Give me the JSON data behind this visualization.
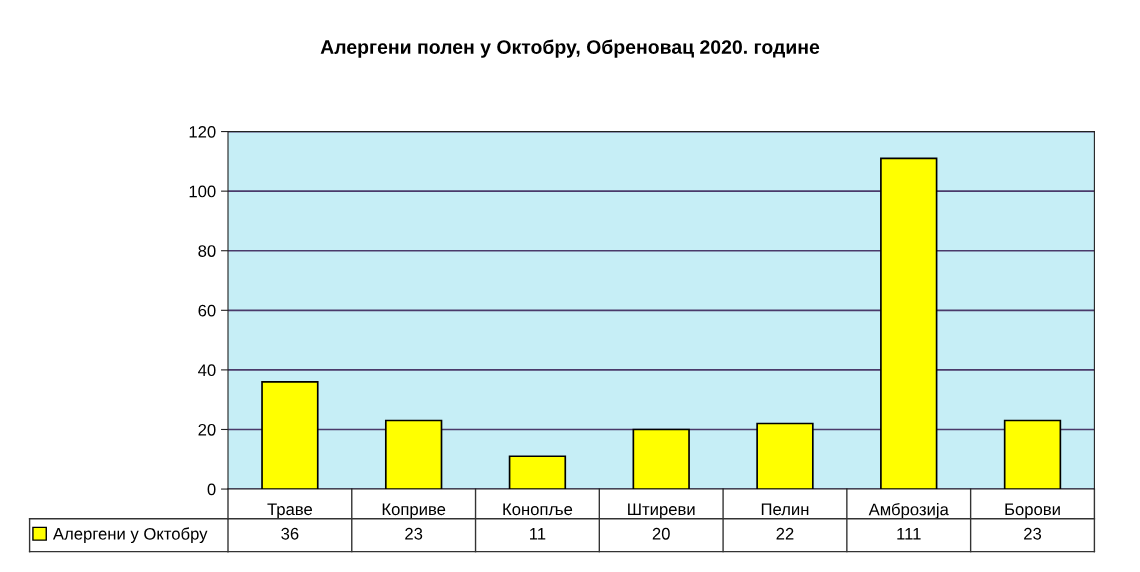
{
  "chart_data": {
    "type": "bar",
    "title": "Алергени полен у Октобру, Обреновац 2020. године",
    "categories": [
      "Траве",
      "Коприве",
      "Конопље",
      "Штиреви",
      "Пелин",
      "Амброзија",
      "Борови"
    ],
    "series": [
      {
        "name": "Алергени у Октобру",
        "color": "#ffff00",
        "values": [
          36,
          23,
          11,
          20,
          22,
          111,
          23
        ]
      }
    ],
    "ylim": [
      0,
      120
    ],
    "yticks": [
      0,
      20,
      40,
      60,
      80,
      100,
      120
    ],
    "grid": "y",
    "legend": "bottom",
    "data_labels": true
  }
}
